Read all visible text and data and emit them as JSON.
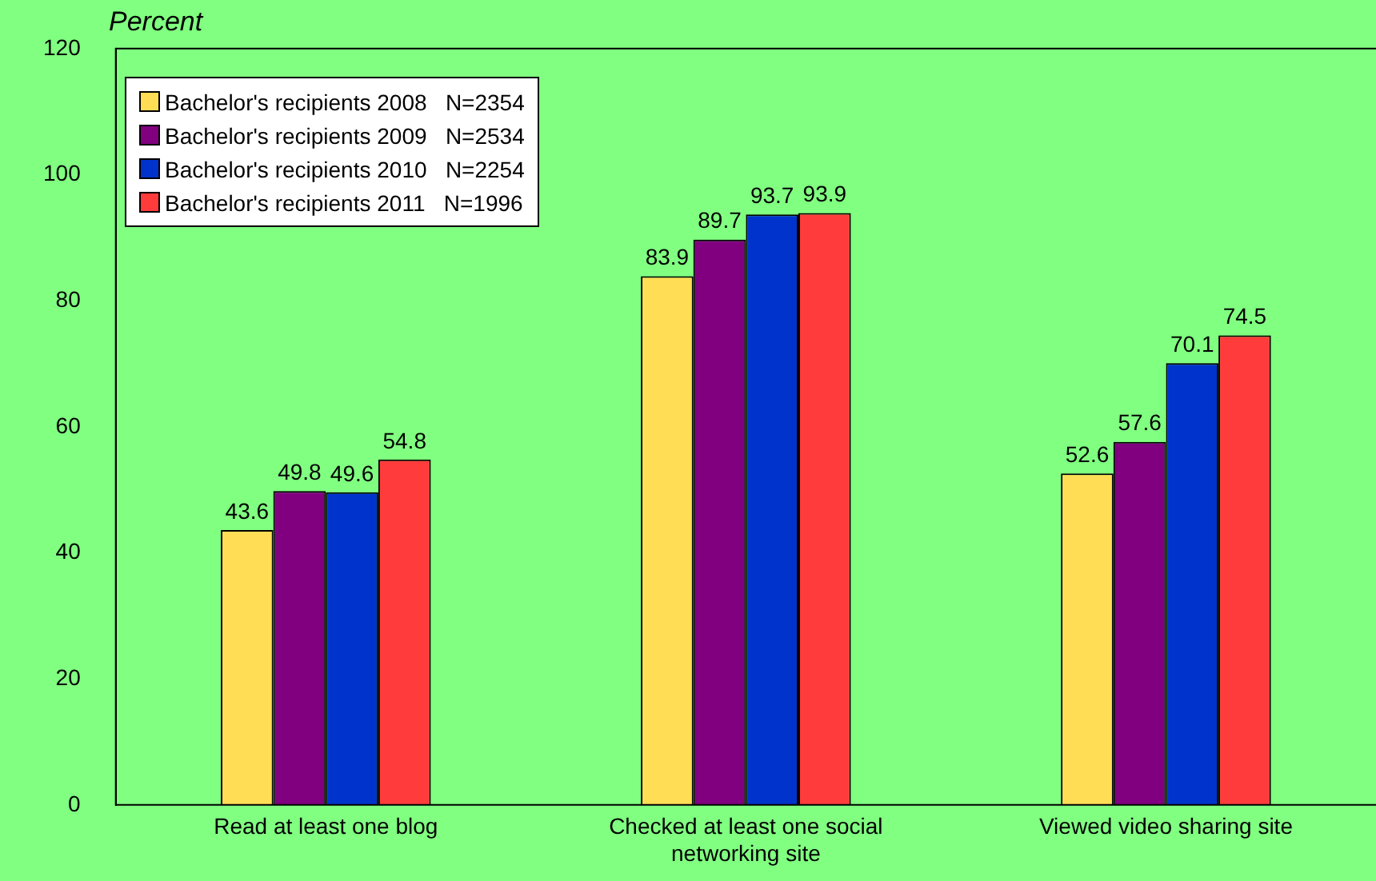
{
  "chart_data": {
    "type": "bar",
    "ylabel": "Percent",
    "categories": [
      "Read at least one blog",
      "Checked at least one social networking site",
      "Viewed video sharing site"
    ],
    "series": [
      {
        "name": "Bachelor's recipients 2008   N=2354",
        "color": "#ffdd55",
        "values": [
          43.6,
          83.9,
          52.6
        ]
      },
      {
        "name": "Bachelor's recipients 2009   N=2534",
        "color": "#800080",
        "values": [
          49.8,
          89.7,
          57.6
        ]
      },
      {
        "name": "Bachelor's recipients 2010   N=2254",
        "color": "#0033cc",
        "values": [
          49.6,
          93.7,
          70.1
        ]
      },
      {
        "name": "Bachelor's recipients 2011   N=1996",
        "color": "#ff3b3b",
        "values": [
          54.8,
          93.9,
          74.5
        ]
      }
    ],
    "ylim": [
      0,
      120
    ],
    "yticks": [
      0,
      20,
      40,
      60,
      80,
      100,
      120
    ],
    "grid": false,
    "legend": "top left",
    "data_labels": true
  }
}
